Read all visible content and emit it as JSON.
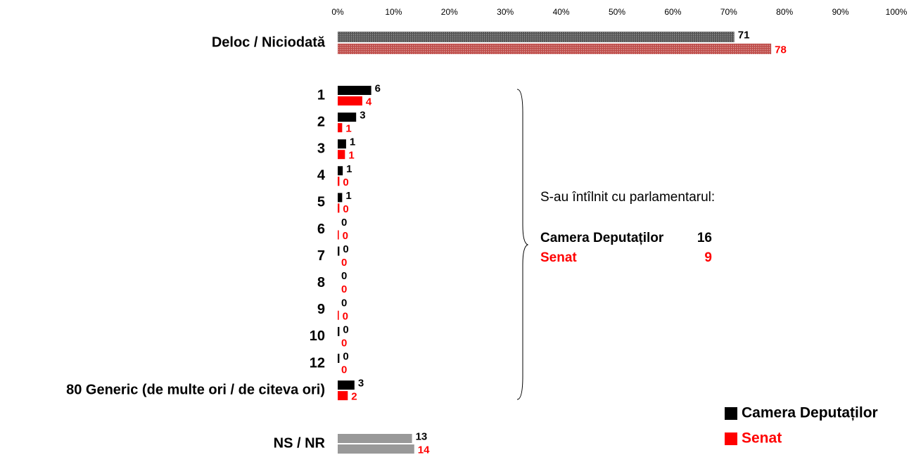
{
  "chart_data": {
    "type": "hbar",
    "categories": [
      "Deloc / Niciodată",
      "1",
      "2",
      "3",
      "4",
      "5",
      "6",
      "7",
      "8",
      "9",
      "10",
      "12",
      "80  Generic (de multe ori / de citeva ori)",
      "NS / NR"
    ],
    "series": [
      {
        "name": "Camera Deputaților",
        "color": "#000000",
        "colors": [
          "#555555",
          "#000000",
          "#000000",
          "#000000",
          "#000000",
          "#000000",
          "#000000",
          "#000000",
          "#000000",
          "#000000",
          "#000000",
          "#000000",
          "#000000",
          "#999999"
        ],
        "values": [
          71,
          6,
          3.3,
          1.5,
          0.9,
          0.8,
          0,
          0.3,
          0,
          0,
          0.3,
          0.3,
          3,
          13.3
        ],
        "value_labels": [
          "71",
          "6",
          "3",
          "1",
          "1",
          "1",
          "0",
          "0",
          "0",
          "0",
          "0",
          "0",
          "3",
          "13"
        ]
      },
      {
        "name": "Senat",
        "color": "#ff0000",
        "colors": [
          "#c0504d",
          "#ff0000",
          "#ff0000",
          "#ff0000",
          "#ff0000",
          "#ff0000",
          "#ff0000",
          "#ff0000",
          "#ff0000",
          "#ff0000",
          "#ff0000",
          "#ff0000",
          "#ff0000",
          "#999999"
        ],
        "values": [
          77.6,
          4.4,
          0.8,
          1.3,
          0.3,
          0.3,
          0.2,
          0,
          0,
          0.2,
          0,
          0,
          1.8,
          13.7
        ],
        "value_labels": [
          "78",
          "4",
          "1",
          "1",
          "0",
          "0",
          "0",
          "0",
          "0",
          "0",
          "0",
          "0",
          "2",
          "14"
        ]
      }
    ],
    "xlim": [
      0,
      100
    ],
    "xticks": [
      {
        "value": 0,
        "label": "0%"
      },
      {
        "value": 10,
        "label": "10%"
      },
      {
        "value": 20,
        "label": "20%"
      },
      {
        "value": 30,
        "label": "30%"
      },
      {
        "value": 40,
        "label": "40%"
      },
      {
        "value": 50,
        "label": "50%"
      },
      {
        "value": 60,
        "label": "60%"
      },
      {
        "value": 70,
        "label": "70%"
      },
      {
        "value": 80,
        "label": "80%"
      },
      {
        "value": 90,
        "label": "90%"
      },
      {
        "value": 100,
        "label": "100%"
      }
    ],
    "legend": "bottom-right",
    "annotation": {
      "text": "S-au întîlnit cu parlamentarul:",
      "items": [
        {
          "label": "Camera Deputaților",
          "value": 16,
          "color": "#000000"
        },
        {
          "label": "Senat",
          "value": 9,
          "color": "#ff0000"
        }
      ]
    }
  }
}
